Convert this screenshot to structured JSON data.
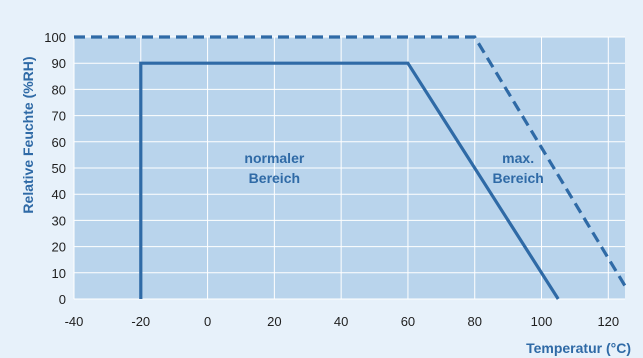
{
  "chart_data": {
    "type": "line",
    "title": "",
    "xlabel": "Temperatur (°C)",
    "ylabel": "Relative Feuchte (%RH)",
    "xlim": [
      -40,
      125
    ],
    "ylim": [
      0,
      100
    ],
    "x_ticks": [
      -40,
      -20,
      0,
      20,
      40,
      60,
      80,
      100,
      120
    ],
    "y_ticks": [
      0,
      10,
      20,
      30,
      40,
      50,
      60,
      70,
      80,
      90,
      100
    ],
    "grid": true,
    "series": [
      {
        "style": "solid",
        "points": [
          {
            "x": -20,
            "y": 0
          },
          {
            "x": -20,
            "y": 90
          },
          {
            "x": 60,
            "y": 90
          },
          {
            "x": 105,
            "y": 0
          }
        ]
      },
      {
        "style": "dashed",
        "points": [
          {
            "x": -40,
            "y": 100
          },
          {
            "x": 80,
            "y": 100
          },
          {
            "x": 125,
            "y": 5
          }
        ]
      }
    ],
    "annotations": [
      {
        "lines": [
          "normaler",
          "Bereich"
        ],
        "x": 20,
        "y": 50
      },
      {
        "lines": [
          "max.",
          "Bereich"
        ],
        "x": 93,
        "y": 50
      }
    ],
    "colors": {
      "line": "#2f6aa6",
      "plot_fill": "#b9d4ec",
      "background": "#e7f1fa",
      "grid": "#ffffff",
      "axis_title": "#2f6aa6",
      "tick_label": "#1f1f1f"
    }
  }
}
